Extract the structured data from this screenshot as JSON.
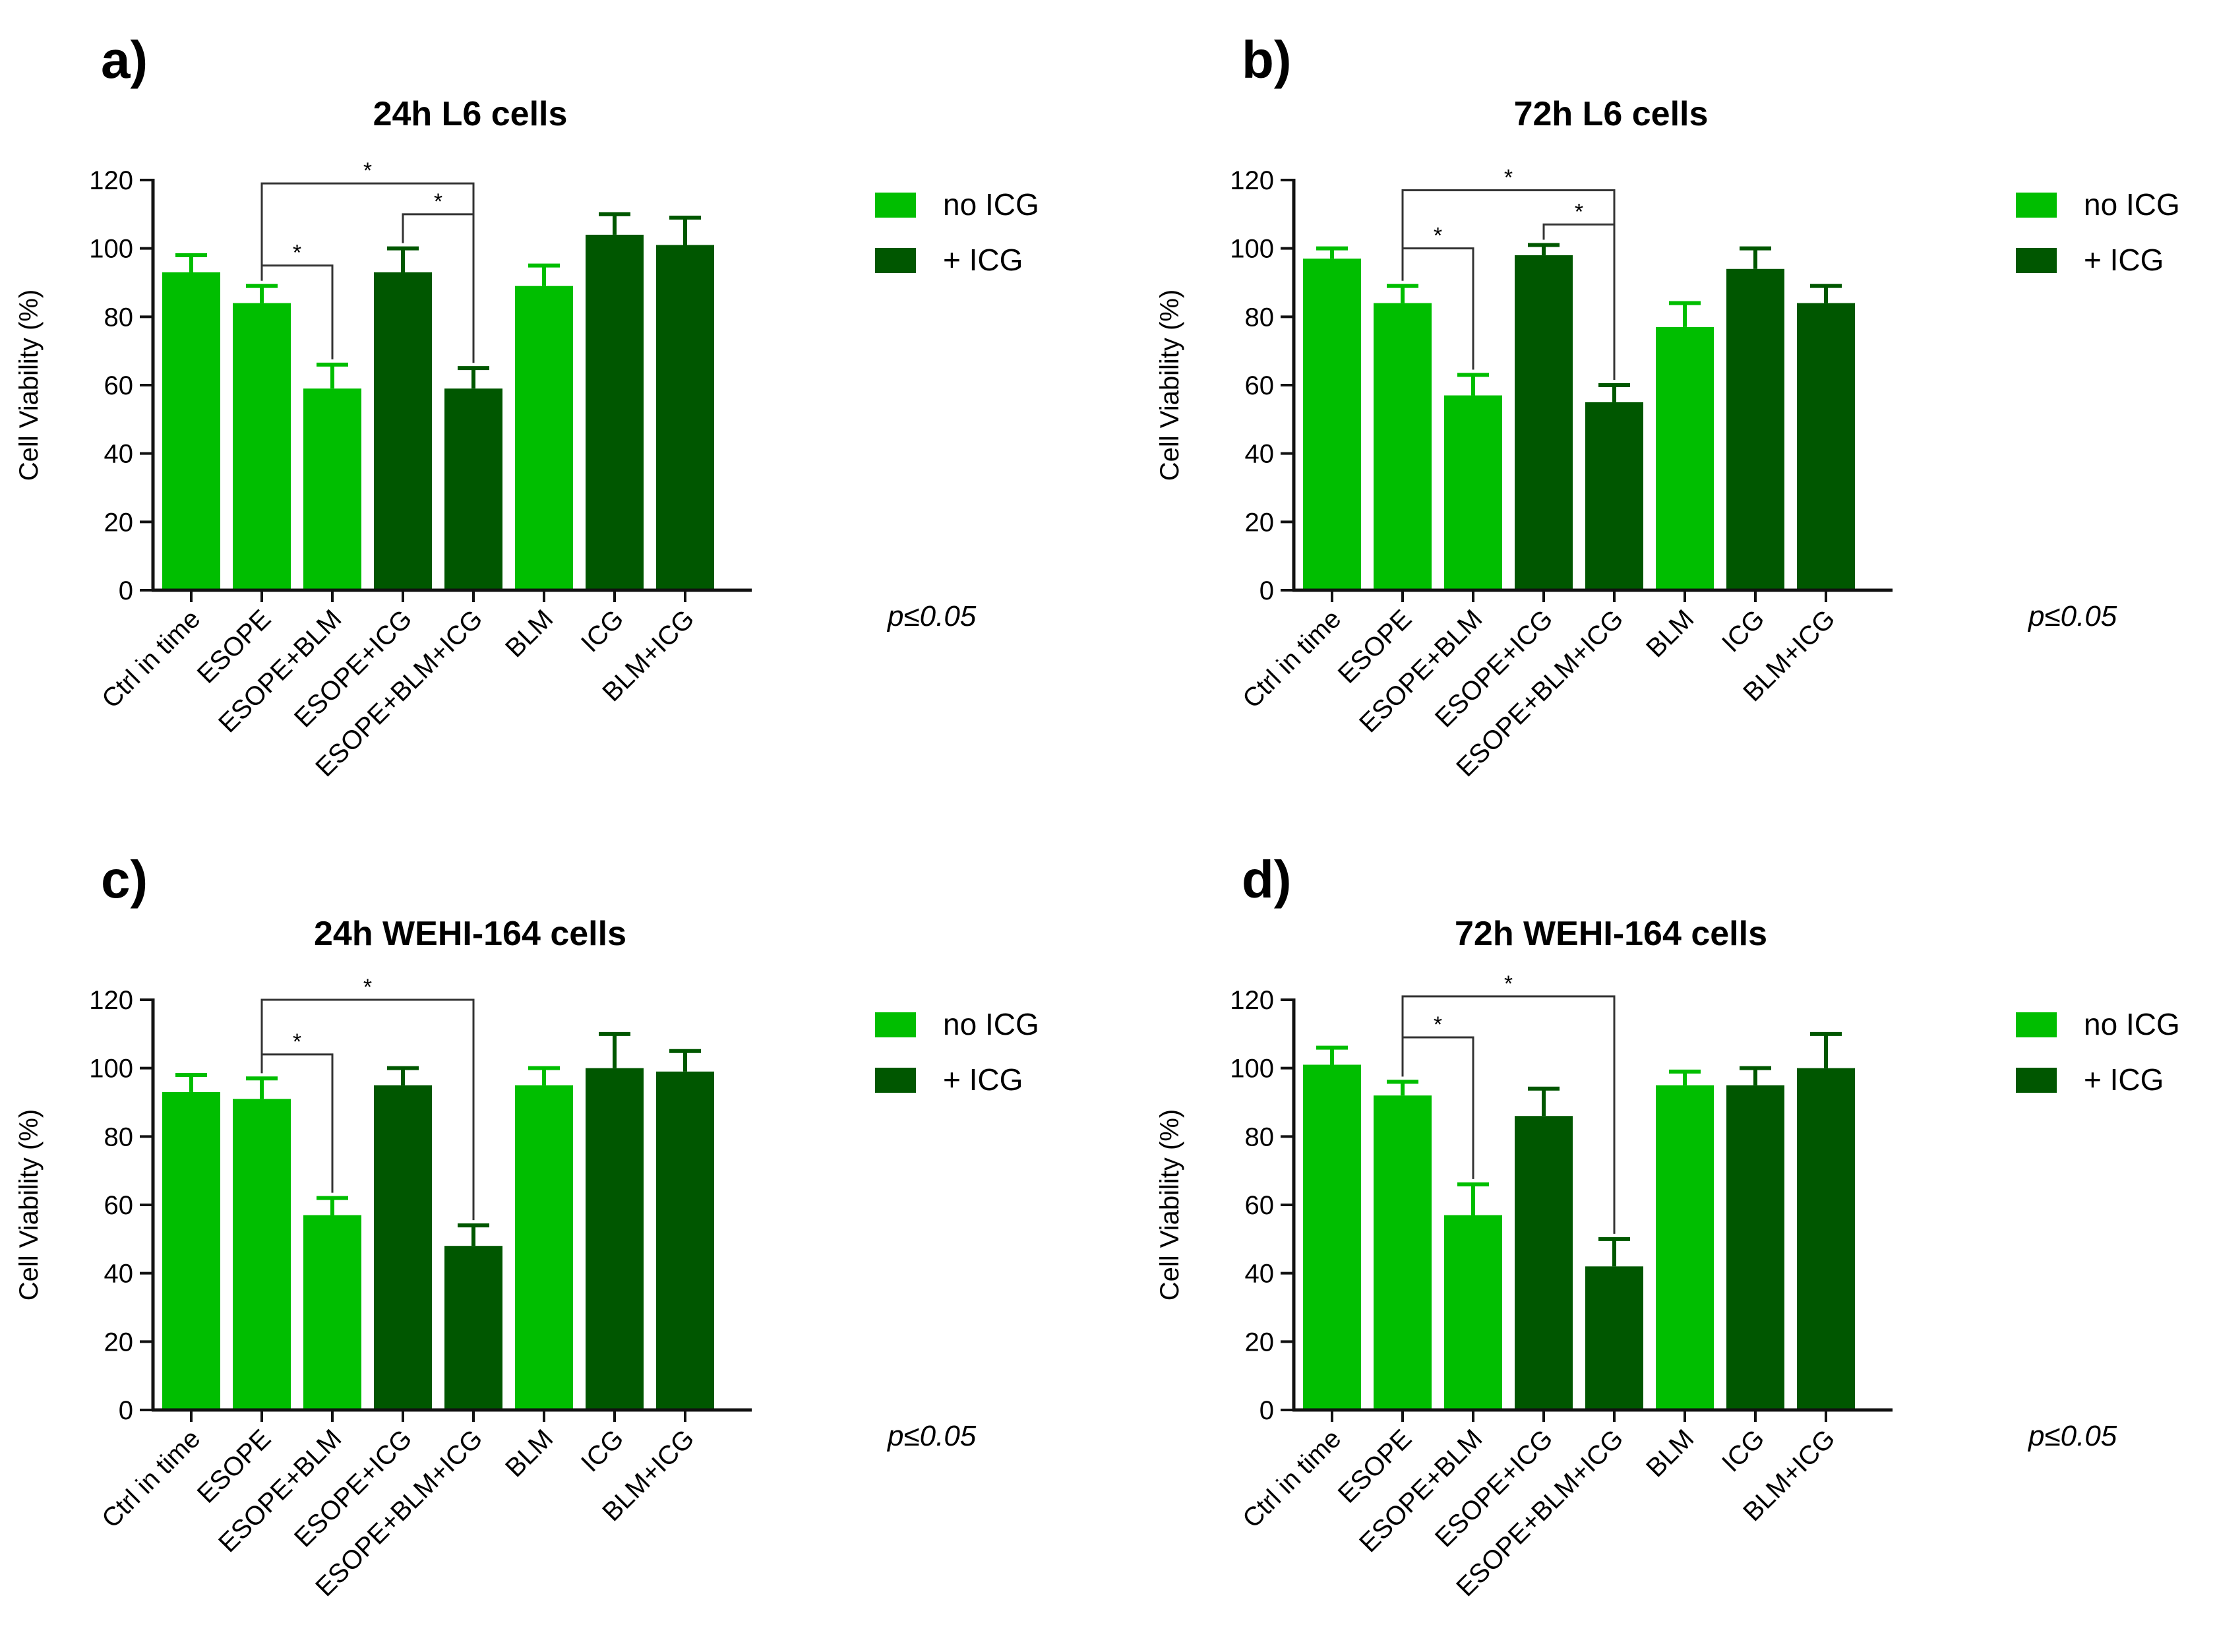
{
  "figure": {
    "colors": {
      "no_icg": "#00BE00",
      "plus_icg": "#005700",
      "axis": "#111111"
    }
  },
  "chart_data": [
    {
      "panel_label": "a)",
      "title": "24h L6 cells",
      "type": "bar",
      "ylabel": "Cell Viability (%)",
      "xlabel": "",
      "ylim": [
        0,
        120
      ],
      "yticks": [
        "0",
        "20",
        "40",
        "60",
        "80",
        "100",
        "120"
      ],
      "categories": [
        "Ctrl in time",
        "ESOPE",
        "ESOPE+BLM",
        "ESOPE+ICG",
        "ESOPE+BLM+ICG",
        "BLM",
        "ICG",
        "BLM+ICG"
      ],
      "values": [
        93,
        84,
        59,
        93,
        59,
        89,
        104,
        101
      ],
      "errors": [
        5,
        5,
        7,
        7,
        6,
        6,
        6,
        8
      ],
      "groups": [
        "no ICG",
        "no ICG",
        "no ICG",
        "+ ICG",
        "+ ICG",
        "no ICG",
        "+ ICG",
        "+ ICG"
      ],
      "legend": [
        {
          "label": "no ICG",
          "color": "#00BE00"
        },
        {
          "label": "+ ICG",
          "color": "#005700"
        }
      ],
      "significance": [
        {
          "from": 1,
          "to": 2,
          "level": 95,
          "label": "*"
        },
        {
          "from": 3,
          "to": 4,
          "level": 110,
          "label": "*"
        },
        {
          "from": 1,
          "to": 4,
          "level": 119,
          "label": "*"
        }
      ],
      "pvalue_note": "p≤0.05"
    },
    {
      "panel_label": "b)",
      "title": "72h L6 cells",
      "type": "bar",
      "ylabel": "Cell Viability (%)",
      "xlabel": "",
      "ylim": [
        0,
        120
      ],
      "yticks": [
        "0",
        "20",
        "40",
        "60",
        "80",
        "100",
        "120"
      ],
      "categories": [
        "Ctrl in time",
        "ESOPE",
        "ESOPE+BLM",
        "ESOPE+ICG",
        "ESOPE+BLM+ICG",
        "BLM",
        "ICG",
        "BLM+ICG"
      ],
      "values": [
        97,
        84,
        57,
        98,
        55,
        77,
        94,
        84
      ],
      "errors": [
        3,
        5,
        6,
        3,
        5,
        7,
        6,
        5
      ],
      "groups": [
        "no ICG",
        "no ICG",
        "no ICG",
        "+ ICG",
        "+ ICG",
        "no ICG",
        "+ ICG",
        "+ ICG"
      ],
      "legend": [
        {
          "label": "no  ICG",
          "color": "#00BE00"
        },
        {
          "label": "+ ICG",
          "color": "#005700"
        }
      ],
      "significance": [
        {
          "from": 1,
          "to": 2,
          "level": 100,
          "label": "*"
        },
        {
          "from": 3,
          "to": 4,
          "level": 107,
          "label": "*"
        },
        {
          "from": 1,
          "to": 4,
          "level": 117,
          "label": "*"
        }
      ],
      "pvalue_note": "p≤0.05"
    },
    {
      "panel_label": "c)",
      "title": "24h WEHI-164 cells",
      "type": "bar",
      "ylabel": "Cell Viability (%)",
      "xlabel": "",
      "ylim": [
        0,
        120
      ],
      "yticks": [
        "0",
        "20",
        "40",
        "60",
        "80",
        "100",
        "120"
      ],
      "categories": [
        "Ctrl in time",
        "ESOPE",
        "ESOPE+BLM",
        "ESOPE+ICG",
        "ESOPE+BLM+ICG",
        "BLM",
        "ICG",
        "BLM+ICG"
      ],
      "values": [
        93,
        91,
        57,
        95,
        48,
        95,
        100,
        99
      ],
      "errors": [
        5,
        6,
        5,
        5,
        6,
        5,
        10,
        6
      ],
      "groups": [
        "no ICG",
        "no ICG",
        "no ICG",
        "+ ICG",
        "+ ICG",
        "no ICG",
        "+ ICG",
        "+ ICG"
      ],
      "legend": [
        {
          "label": "no ICG",
          "color": "#00BE00"
        },
        {
          "label": "+ ICG",
          "color": "#005700"
        }
      ],
      "significance": [
        {
          "from": 1,
          "to": 2,
          "level": 104,
          "label": "*"
        },
        {
          "from": 1,
          "to": 4,
          "level": 120,
          "label": "*"
        }
      ],
      "pvalue_note": "p≤0.05"
    },
    {
      "panel_label": "d)",
      "title": "72h WEHI-164 cells",
      "type": "bar",
      "ylabel": "Cell Viability (%)",
      "xlabel": "",
      "ylim": [
        0,
        120
      ],
      "yticks": [
        "0",
        "20",
        "40",
        "60",
        "80",
        "100",
        "120"
      ],
      "categories": [
        "Ctrl in time",
        "ESOPE",
        "ESOPE+BLM",
        "ESOPE+ICG",
        "ESOPE+BLM+ICG",
        "BLM",
        "ICG",
        "BLM+ICG"
      ],
      "values": [
        101,
        92,
        57,
        86,
        42,
        95,
        95,
        100
      ],
      "errors": [
        5,
        4,
        9,
        8,
        8,
        4,
        5,
        10
      ],
      "groups": [
        "no ICG",
        "no ICG",
        "no ICG",
        "+ ICG",
        "+ ICG",
        "no ICG",
        "+ ICG",
        "+ ICG"
      ],
      "legend": [
        {
          "label": "no ICG",
          "color": "#00BE00"
        },
        {
          "label": "+ ICG",
          "color": "#005700"
        }
      ],
      "significance": [
        {
          "from": 1,
          "to": 2,
          "level": 109,
          "label": "*"
        },
        {
          "from": 1,
          "to": 4,
          "level": 121,
          "label": "*"
        }
      ],
      "pvalue_note": "p≤0.05"
    }
  ]
}
